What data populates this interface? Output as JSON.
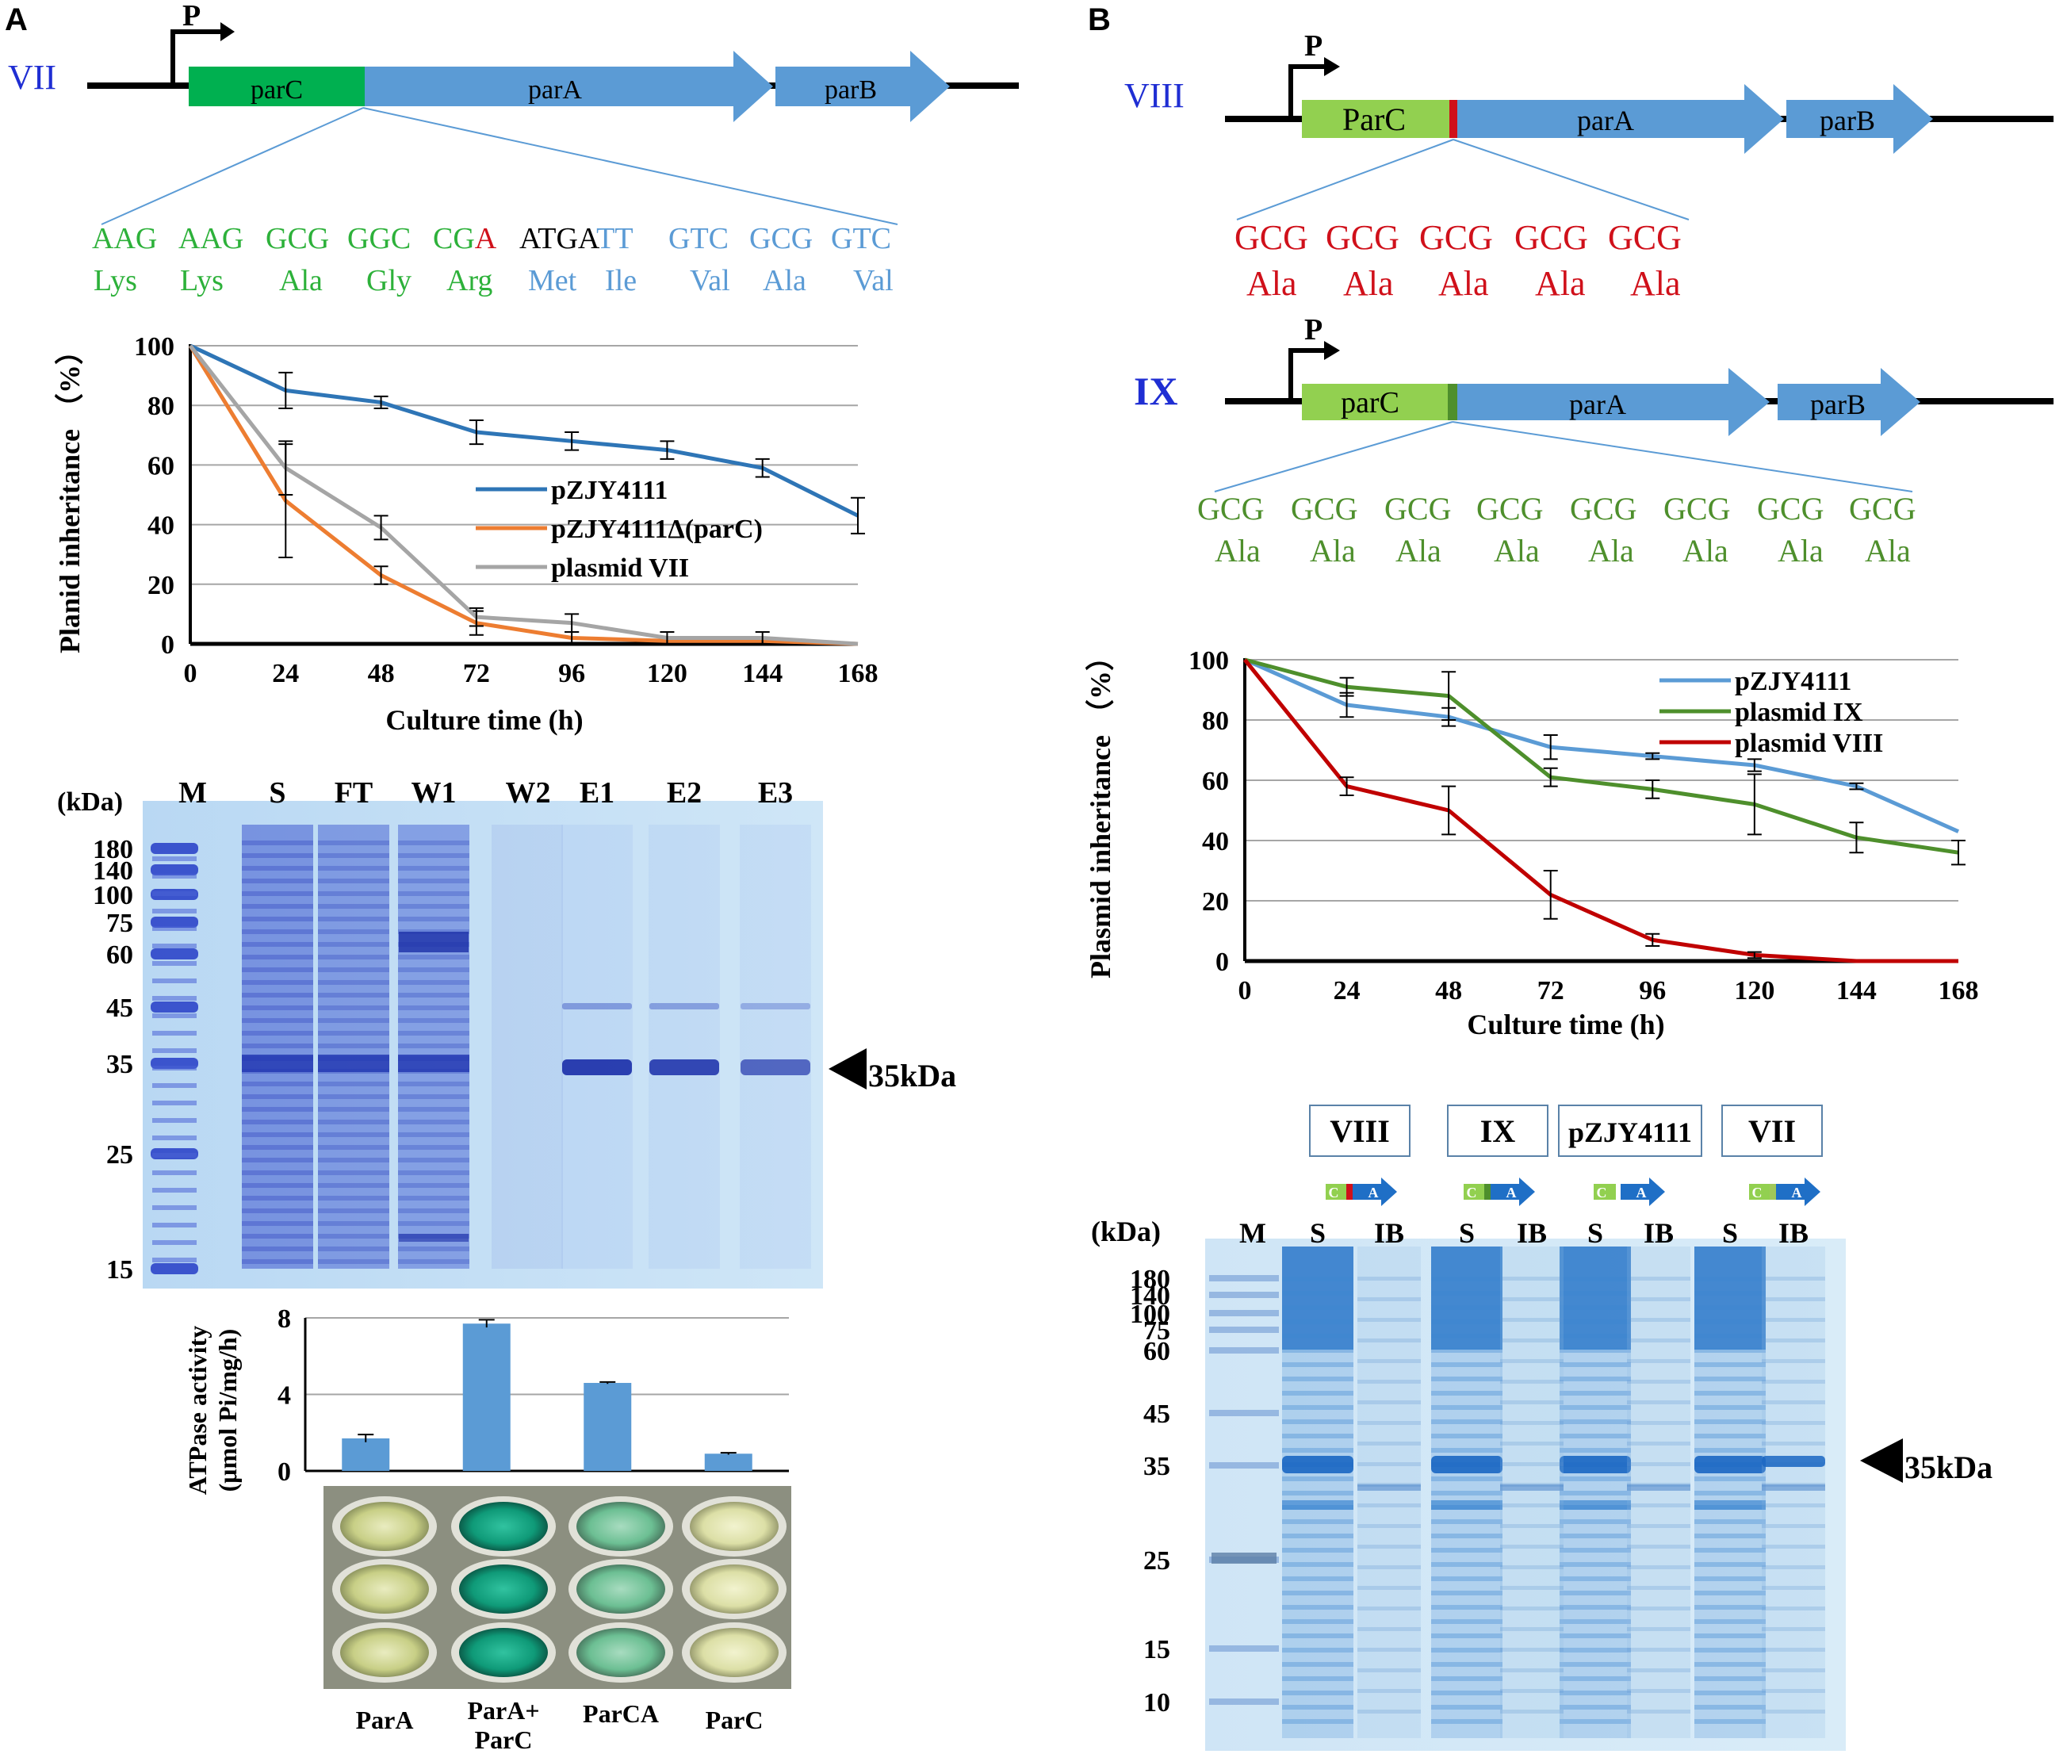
{
  "panels": {
    "a": "A",
    "b": "B"
  },
  "colors": {
    "gene_blue": "#5b9bd5",
    "parC_green": "#00b050",
    "parC_light": "#92d050",
    "codon_green": "#2db13a",
    "aa_green": "#4e8f2c",
    "red": "#d0101a",
    "label_blue": "#1f2ed3",
    "series_blue": "#2e75b6",
    "series_orange": "#ed7d31",
    "series_gray": "#a5a5a5",
    "series_lightblue": "#5b9bd5",
    "series_green": "#4e8f2c",
    "series_red": "#c00000"
  },
  "constructs": {
    "vii": {
      "name": "VII",
      "promoter": "P",
      "genes": [
        "parC",
        "parA",
        "parB"
      ]
    },
    "viii": {
      "name": "VIII",
      "promoter": "P",
      "genes": [
        "ParC",
        "parA",
        "parB"
      ]
    },
    "ix": {
      "name": "IX",
      "promoter": "P",
      "genes": [
        "parC",
        "parA",
        "parB"
      ]
    }
  },
  "sequences": {
    "vii": {
      "codons": [
        {
          "green": "AAG",
          "red": "",
          "black": "",
          "blue": ""
        },
        {
          "green": "AAG",
          "red": "",
          "black": "",
          "blue": ""
        },
        {
          "green": "GCG",
          "red": "",
          "black": "",
          "blue": ""
        },
        {
          "green": "GGC",
          "red": "",
          "black": "",
          "blue": ""
        },
        {
          "green": "CG",
          "red": "A",
          "black": "",
          "blue": ""
        },
        {
          "green": "",
          "red": "",
          "black": "ATGA",
          "blue": "TT"
        },
        {
          "green": "",
          "red": "",
          "black": "",
          "blue": "GTC"
        },
        {
          "green": "",
          "red": "",
          "black": "",
          "blue": "GCG"
        },
        {
          "green": "",
          "red": "",
          "black": "",
          "blue": "GTC"
        }
      ],
      "amino_acids": [
        "Lys",
        "Lys",
        "Ala",
        "Gly",
        "Arg",
        "Met",
        "Ile",
        "Val",
        "Ala",
        "Val"
      ]
    },
    "viii": {
      "codons": [
        "GCG",
        "GCG",
        "GCG",
        "GCG",
        "GCG"
      ],
      "amino_acids": [
        "Ala",
        "Ala",
        "Ala",
        "Ala",
        "Ala"
      ]
    },
    "ix": {
      "codons": [
        "GCG",
        "GCG",
        "GCG",
        "GCG",
        "GCG",
        "GCG",
        "GCG",
        "GCG"
      ],
      "amino_acids": [
        "Ala",
        "Ala",
        "Ala",
        "Ala",
        "Ala",
        "Ala",
        "Ala",
        "Ala"
      ]
    }
  },
  "chart_data": [
    {
      "type": "line",
      "title": "",
      "xlabel": "Culture time (h)",
      "ylabel": "Planid inheritance （%）",
      "x": [
        0,
        24,
        48,
        72,
        96,
        120,
        144,
        168
      ],
      "xlim": [
        0,
        168
      ],
      "ylim": [
        0,
        100
      ],
      "yticks": [
        0,
        20,
        40,
        60,
        80,
        100
      ],
      "grid": true,
      "legend_position": "center-right",
      "series": [
        {
          "name": "pZJY4111",
          "color": "#2e75b6",
          "values": [
            100,
            85,
            81,
            71,
            68,
            65,
            59,
            43
          ],
          "errors": [
            0,
            6,
            2,
            4,
            3,
            3,
            3,
            6
          ]
        },
        {
          "name": "pZJY4111Δ(parC)",
          "color": "#ed7d31",
          "values": [
            100,
            48,
            23,
            7,
            2,
            1,
            1,
            0
          ],
          "errors": [
            0,
            19,
            3,
            4,
            2,
            1,
            1,
            0
          ]
        },
        {
          "name": "plasmid VII",
          "color": "#a5a5a5",
          "values": [
            100,
            59,
            39,
            9,
            7,
            2,
            2,
            0
          ],
          "errors": [
            0,
            9,
            4,
            3,
            3,
            2,
            2,
            0
          ]
        }
      ]
    },
    {
      "type": "line",
      "title": "",
      "xlabel": "Culture time (h)",
      "ylabel": "Plasmid inheritance （%）",
      "x": [
        0,
        24,
        48,
        72,
        96,
        120,
        144,
        168
      ],
      "xlim": [
        0,
        168
      ],
      "ylim": [
        0,
        100
      ],
      "yticks": [
        0,
        20,
        40,
        60,
        80,
        100
      ],
      "grid": true,
      "legend_position": "top-right",
      "series": [
        {
          "name": "pZJY4111",
          "color": "#5b9bd5",
          "values": [
            100,
            85,
            81,
            71,
            68,
            65,
            58,
            43
          ],
          "errors": [
            0,
            4,
            3,
            4,
            1,
            2,
            1,
            0
          ]
        },
        {
          "name": "plasmid IX",
          "color": "#4e8f2c",
          "values": [
            100,
            91,
            88,
            61,
            57,
            52,
            41,
            36
          ],
          "errors": [
            0,
            3,
            8,
            3,
            3,
            10,
            5,
            4
          ]
        },
        {
          "name": "plasmid VIII",
          "color": "#c00000",
          "values": [
            100,
            58,
            50,
            22,
            7,
            2,
            0,
            0
          ],
          "errors": [
            0,
            3,
            8,
            8,
            2,
            1,
            0,
            0
          ]
        }
      ]
    },
    {
      "type": "bar",
      "title": "",
      "xlabel": "",
      "ylabel": "ATPase activity (μmol Pi/mg/h)",
      "categories": [
        "ParA",
        "ParA+ ParC",
        "ParCA",
        "ParC"
      ],
      "values": [
        1.7,
        7.7,
        4.6,
        0.9
      ],
      "errors": [
        0.2,
        0.2,
        0.05,
        0.05
      ],
      "ylim": [
        0,
        8
      ],
      "yticks": [
        0,
        4,
        8
      ],
      "grid": true
    }
  ],
  "gel_a": {
    "unit": "(kDa)",
    "lanes": [
      "M",
      "S",
      "FT",
      "W1",
      "W2",
      "E1",
      "E2",
      "E3"
    ],
    "markers": [
      "180",
      "140",
      "100",
      "75",
      "60",
      "45",
      "35",
      "25",
      "15"
    ],
    "arrow_label": "35kDa"
  },
  "gel_b": {
    "unit": "(kDa)",
    "groups": [
      "VIII",
      "IX",
      "pZJY4111",
      "VII"
    ],
    "lanes": [
      "M",
      "S",
      "IB",
      "S",
      "IB",
      "S",
      "IB",
      "S",
      "IB"
    ],
    "markers": [
      "180",
      "140",
      "100",
      "75",
      "60",
      "45",
      "35",
      "25",
      "15",
      "10"
    ],
    "arrow_label": "35kDa",
    "icon_letters": {
      "c": "C",
      "a": "A"
    }
  },
  "wells": {
    "labels": [
      "ParA",
      "ParA+",
      "ParC",
      "ParCA",
      "ParC"
    ]
  }
}
